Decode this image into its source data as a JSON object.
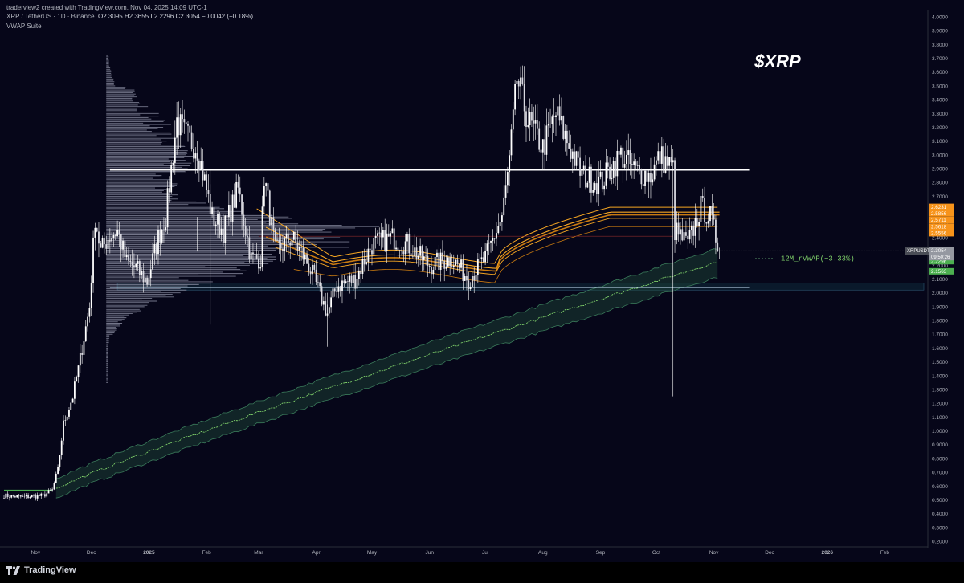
{
  "header": {
    "credit": "traderview2 created with TradingView.com, Nov 04, 2025 14:09 UTC-1",
    "symbol_line": "XRP / TetherUS · 1D · Binance",
    "ohlc": "O2.3095 H2.3655 L2.2296 C2.3054 −0.0042 (−0.18%)",
    "indicator": "VWAP Suite"
  },
  "footer": {
    "brand": "TradingView"
  },
  "colors": {
    "background": "#060619",
    "candle": "#ffffff",
    "profile": "#9a9cb0",
    "level_line": "#ffffff",
    "support_line": "#cfe8ff",
    "support_zone": "#0e2a3a",
    "vwap_orange": "#f5a623",
    "vwap_orange_dark": "#c87a10",
    "vwap_green": "#7fd06a",
    "band_green": "#1f4a3a",
    "last_price_bg": "#9598a1",
    "orange_label_bg": "#f7931a",
    "green_label_bg": "#4caf50",
    "tick_text": "#b2b5be"
  },
  "chart_data": {
    "type": "line",
    "title": "$XRP",
    "symbol": "XRPUSDT",
    "timeframe": "1D",
    "exchange": "Binance",
    "ylim": [
      0.2,
      4.0
    ],
    "y_ticks": [
      "4.0000",
      "3.9000",
      "3.8000",
      "3.7000",
      "3.6000",
      "3.5000",
      "3.4000",
      "3.3000",
      "3.2000",
      "3.1000",
      "3.0000",
      "2.9000",
      "2.8000",
      "2.7000",
      "2.6000",
      "2.5000",
      "2.4000",
      "2.3000",
      "2.2000",
      "2.1000",
      "2.0000",
      "1.9000",
      "1.8000",
      "1.7000",
      "1.6000",
      "1.5000",
      "1.4000",
      "1.3000",
      "1.2000",
      "1.1000",
      "1.0000",
      "0.9000",
      "0.8000",
      "0.7000",
      "0.6000",
      "0.5000",
      "0.4000",
      "0.3000",
      "0.2000"
    ],
    "x_ticks": [
      "Nov",
      "Dec",
      "2025",
      "Feb",
      "Mar",
      "Apr",
      "May",
      "Jun",
      "Jul",
      "Aug",
      "Sep",
      "Oct",
      "Nov",
      "Dec",
      "2026",
      "Feb"
    ],
    "x_start": "2024-10-15",
    "x_end": "2026-02-22",
    "close_series": {
      "dates": [
        "2024-10-15",
        "2024-10-25",
        "2024-11-05",
        "2024-11-10",
        "2024-11-13",
        "2024-11-16",
        "2024-11-21",
        "2024-11-24",
        "2024-11-30",
        "2024-12-03",
        "2024-12-06",
        "2024-12-10",
        "2024-12-15",
        "2024-12-20",
        "2024-12-25",
        "2024-12-31",
        "2025-01-06",
        "2025-01-10",
        "2025-01-16",
        "2025-01-20",
        "2025-01-27",
        "2025-02-01",
        "2025-02-04",
        "2025-02-10",
        "2025-02-18",
        "2025-02-25",
        "2025-03-02",
        "2025-03-04",
        "2025-03-10",
        "2025-03-19",
        "2025-03-28",
        "2025-04-07",
        "2025-04-12",
        "2025-04-22",
        "2025-05-01",
        "2025-05-12",
        "2025-05-20",
        "2025-06-01",
        "2025-06-13",
        "2025-06-22",
        "2025-07-01",
        "2025-07-10",
        "2025-07-14",
        "2025-07-18",
        "2025-07-24",
        "2025-08-01",
        "2025-08-08",
        "2025-08-14",
        "2025-08-22",
        "2025-09-01",
        "2025-09-12",
        "2025-09-20",
        "2025-09-28",
        "2025-10-03",
        "2025-10-10",
        "2025-10-11",
        "2025-10-18",
        "2025-10-25",
        "2025-10-30",
        "2025-11-04"
      ],
      "close": [
        0.53,
        0.52,
        0.53,
        0.57,
        0.72,
        1.05,
        1.25,
        1.45,
        1.9,
        2.55,
        2.3,
        2.4,
        2.45,
        2.22,
        2.18,
        2.08,
        2.4,
        2.55,
        3.25,
        3.15,
        3.05,
        2.75,
        2.55,
        2.45,
        2.75,
        2.25,
        2.25,
        2.85,
        2.3,
        2.4,
        2.2,
        1.85,
        2.05,
        2.1,
        2.35,
        2.4,
        2.35,
        2.2,
        2.25,
        2.1,
        2.25,
        2.55,
        2.95,
        3.55,
        3.25,
        3.05,
        3.3,
        3.1,
        2.85,
        2.8,
        3.0,
        2.88,
        2.85,
        2.99,
        2.9,
        2.45,
        2.35,
        2.62,
        2.55,
        2.3054
      ]
    },
    "levels": [
      {
        "name": "resistance",
        "value": 2.89
      },
      {
        "name": "support",
        "value": 2.04
      }
    ],
    "support_zone": [
      2.02,
      2.07
    ],
    "price_labels": [
      {
        "name": "XRPUSDT",
        "value": 2.3054,
        "text": "2.3054",
        "countdown": "09:50:26",
        "color": "#9598a1"
      },
      {
        "name": "vwap-1",
        "value": 2.6231,
        "text": "2.6231",
        "color": "#f7931a"
      },
      {
        "name": "vwap-2",
        "value": 2.5856,
        "text": "2.5856",
        "color": "#f7931a"
      },
      {
        "name": "vwap-3",
        "value": 2.5711,
        "text": "2.5711",
        "color": "#f7931a"
      },
      {
        "name": "vwap-4",
        "value": 2.5618,
        "text": "2.5618",
        "color": "#f7931a"
      },
      {
        "name": "vwap-5",
        "value": 2.5556,
        "text": "2.5556",
        "color": "#f7931a"
      },
      {
        "name": "rvwap-upper",
        "value": 2.299,
        "text": "2.2990",
        "color": "#4caf50"
      },
      {
        "name": "rvwap",
        "value": 2.2296,
        "text": "2.2296",
        "color": "#4caf50"
      },
      {
        "name": "rvwap-lower",
        "value": 2.1563,
        "text": "2.1563",
        "color": "#4caf50"
      }
    ],
    "annotations": [
      {
        "text": "12M_rVWAP(−3.33%)",
        "color": "#7fd06a"
      }
    ]
  }
}
